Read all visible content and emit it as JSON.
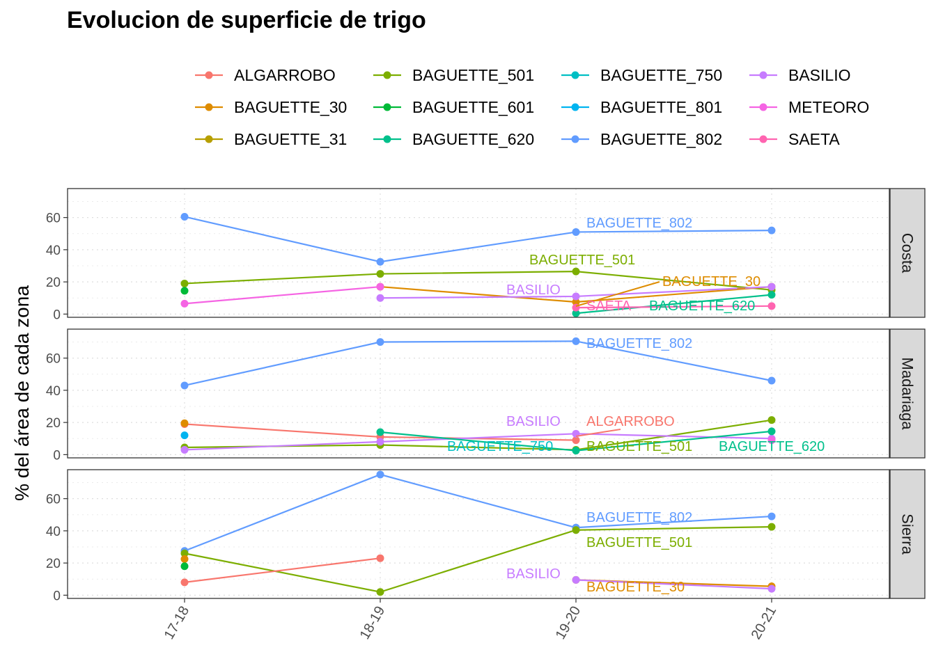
{
  "title": "Evolucion de superficie de trigo",
  "colors": {
    "ALGARROBO": "#F8766D",
    "BAGUETTE_30": "#DE8C00",
    "BAGUETTE_31": "#B79F00",
    "BAGUETTE_501": "#7CAE00",
    "BAGUETTE_601": "#00BA38",
    "BAGUETTE_620": "#00C08B",
    "BAGUETTE_750": "#00BFC4",
    "BAGUETTE_801": "#00B4F0",
    "BAGUETTE_802": "#619CFF",
    "BASILIO": "#C77CFF",
    "METEORO": "#F564E3",
    "SAETA": "#FF64B0"
  },
  "legend": {
    "items": [
      "ALGARROBO",
      "BAGUETTE_30",
      "BAGUETTE_31",
      "BAGUETTE_501",
      "BAGUETTE_601",
      "BAGUETTE_620",
      "BAGUETTE_750",
      "BAGUETTE_801",
      "BAGUETTE_802",
      "BASILIO",
      "METEORO",
      "SAETA"
    ],
    "key_glyph": "a"
  },
  "chart_data": {
    "type": "line",
    "x": [
      "17-18",
      "18-19",
      "19-20",
      "20-21"
    ],
    "ylabel": "% del área de cada zona",
    "ylim": [
      -2,
      78
    ],
    "yticks": [
      0,
      20,
      40,
      60
    ],
    "grid": true,
    "legend_position": "top",
    "facets": [
      {
        "name": "Costa",
        "series": [
          {
            "name": "BAGUETTE_802",
            "values": [
              60.5,
              32.5,
              51,
              52
            ]
          },
          {
            "name": "BAGUETTE_501",
            "values": [
              19,
              25,
              26.5,
              15
            ]
          },
          {
            "name": "BAGUETTE_30",
            "values": [
              null,
              17,
              7.5,
              17
            ]
          },
          {
            "name": "BASILIO",
            "values": [
              null,
              10,
              11,
              17
            ]
          },
          {
            "name": "METEORO",
            "values": [
              6.5,
              17,
              null,
              null
            ]
          },
          {
            "name": "BAGUETTE_601",
            "values": [
              14.5,
              null,
              null,
              null
            ]
          },
          {
            "name": "BAGUETTE_620",
            "values": [
              null,
              null,
              0.5,
              12
            ]
          },
          {
            "name": "SAETA",
            "values": [
              null,
              null,
              4,
              5
            ]
          }
        ],
        "labels": [
          {
            "series": "BAGUETTE_802",
            "text": "BAGUETTE_802"
          },
          {
            "series": "BAGUETTE_501",
            "text": "BAGUETTE_501"
          },
          {
            "series": "BASILIO",
            "text": "BASILIO"
          },
          {
            "series": "BAGUETTE_30",
            "text": "BAGUETTE_30"
          },
          {
            "series": "SAETA",
            "text": "SAETA"
          },
          {
            "series": "BAGUETTE_620",
            "text": "BAGUETTE_620"
          }
        ]
      },
      {
        "name": "Madariaga",
        "series": [
          {
            "name": "BAGUETTE_802",
            "values": [
              43,
              70,
              70.5,
              46
            ]
          },
          {
            "name": "ALGARROBO",
            "values": [
              19,
              11,
              9,
              null
            ]
          },
          {
            "name": "BAGUETTE_30",
            "values": [
              19.5,
              null,
              null,
              null
            ]
          },
          {
            "name": "BAGUETTE_801",
            "values": [
              12,
              null,
              null,
              null
            ]
          },
          {
            "name": "BAGUETTE_501",
            "values": [
              4.5,
              6,
              3,
              21.5
            ]
          },
          {
            "name": "BASILIO",
            "values": [
              3,
              8,
              13,
              10
            ]
          },
          {
            "name": "BAGUETTE_620",
            "values": [
              null,
              14,
              2.5,
              14.5
            ]
          },
          {
            "name": "METEORO",
            "values": [
              null,
              null,
              null,
              9
            ]
          }
        ],
        "labels": [
          {
            "series": "BAGUETTE_802",
            "text": "BAGUETTE_802"
          },
          {
            "series": "BASILIO",
            "text": "BASILIO"
          },
          {
            "series": "ALGARROBO",
            "text": "ALGARROBO"
          },
          {
            "series": "BAGUETTE_750",
            "text": "BAGUETTE_750"
          },
          {
            "series": "BAGUETTE_501",
            "text": "BAGUETTE_501"
          },
          {
            "series": "BAGUETTE_620",
            "text": "BAGUETTE_620"
          }
        ]
      },
      {
        "name": "Sierra",
        "series": [
          {
            "name": "BAGUETTE_802",
            "values": [
              27.5,
              75,
              42,
              49
            ]
          },
          {
            "name": "BAGUETTE_501",
            "values": [
              26,
              2,
              40.5,
              42.5
            ]
          },
          {
            "name": "ALGARROBO",
            "values": [
              8,
              23,
              null,
              null
            ]
          },
          {
            "name": "BAGUETTE_30",
            "values": [
              22.5,
              null,
              9.5,
              5.5
            ]
          },
          {
            "name": "BAGUETTE_601",
            "values": [
              18,
              null,
              null,
              null
            ]
          },
          {
            "name": "BASILIO",
            "values": [
              null,
              null,
              9.5,
              4
            ]
          }
        ],
        "labels": [
          {
            "series": "BAGUETTE_802",
            "text": "BAGUETTE_802"
          },
          {
            "series": "BAGUETTE_501",
            "text": "BAGUETTE_501"
          },
          {
            "series": "BASILIO",
            "text": "BASILIO"
          },
          {
            "series": "BAGUETTE_30",
            "text": "BAGUETTE_30"
          }
        ]
      }
    ]
  }
}
